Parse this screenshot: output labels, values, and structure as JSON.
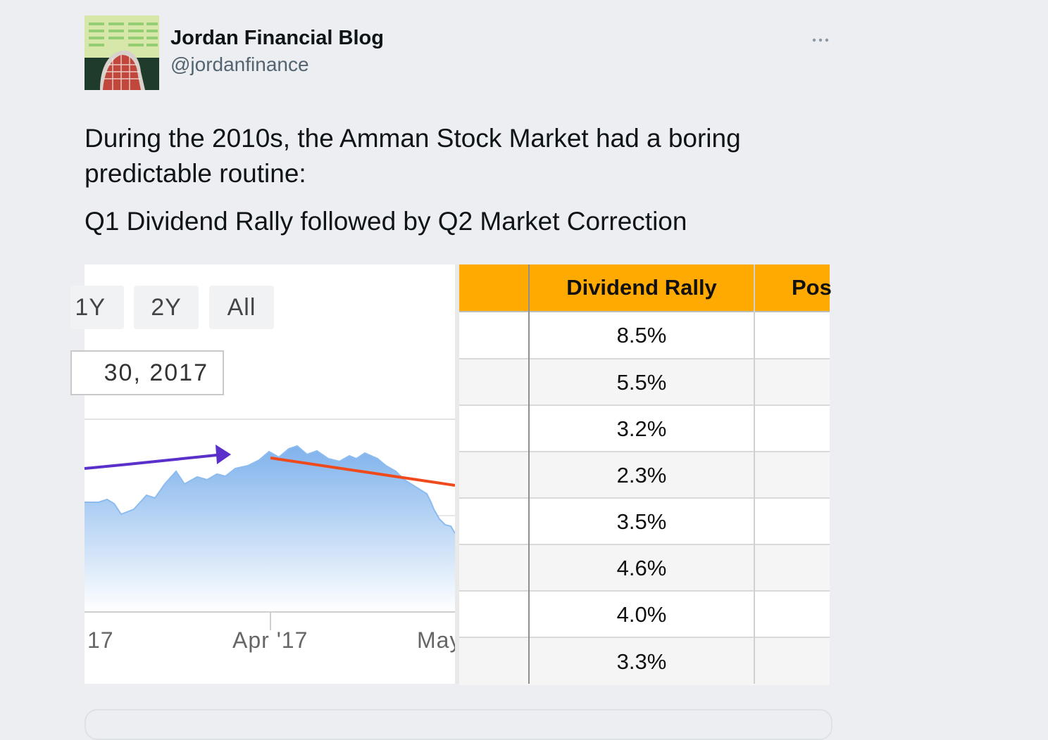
{
  "tweet": {
    "author_name": "Jordan Financial Blog",
    "author_handle": "@jordanfinance",
    "more_icon": "more-horizontal-icon",
    "paragraphs": [
      "During the 2010s, the Amman Stock Market had a boring predictable routine:",
      "Q1 Dividend Rally followed by Q2 Market Correction"
    ]
  },
  "media": {
    "chart": {
      "range_buttons": [
        "1Y",
        "2Y",
        "All"
      ],
      "date_input_value": "30, 2017",
      "x_tick_labels": [
        "17",
        "Apr '17",
        "May"
      ],
      "arrow_rally_color": "#5b2fc9",
      "arrow_correction_color": "#ee4a1c",
      "area_color": "#7fb2ec"
    },
    "table": {
      "header_color": "#ffaa00",
      "columns": [
        "",
        "Dividend Rally",
        "Pos"
      ],
      "dividend_rally_values": [
        "8.5%",
        "5.5%",
        "3.2%",
        "2.3%",
        "3.5%",
        "4.6%",
        "4.0%",
        "3.3%"
      ]
    }
  }
}
